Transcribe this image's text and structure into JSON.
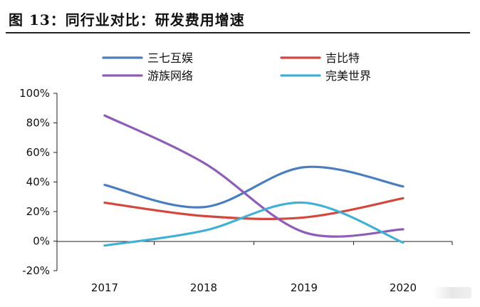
{
  "page": {
    "title": "图 13：同行业对比：研发费用增速"
  },
  "chart_data": {
    "type": "line",
    "title": "",
    "xlabel": "",
    "ylabel": "",
    "categories": [
      "2017",
      "2018",
      "2019",
      "2020"
    ],
    "ylim": [
      -20,
      100
    ],
    "yticks": [
      -20,
      0,
      20,
      40,
      60,
      80,
      100
    ],
    "ytick_labels": [
      "-20%",
      "0%",
      "20%",
      "40%",
      "60%",
      "80%",
      "100%"
    ],
    "grid": false,
    "smooth": true,
    "legend_position": "top",
    "series": [
      {
        "name": "三七互娱",
        "color": "#4a7ebf",
        "values": [
          38,
          23,
          50,
          37
        ]
      },
      {
        "name": "吉比特",
        "color": "#d2483f",
        "values": [
          26,
          17,
          16,
          29
        ]
      },
      {
        "name": "游族网络",
        "color": "#8e5db5",
        "values": [
          85,
          53,
          6,
          8
        ]
      },
      {
        "name": "完美世界",
        "color": "#42b0d4",
        "values": [
          -3,
          7,
          26,
          -1
        ]
      }
    ]
  }
}
